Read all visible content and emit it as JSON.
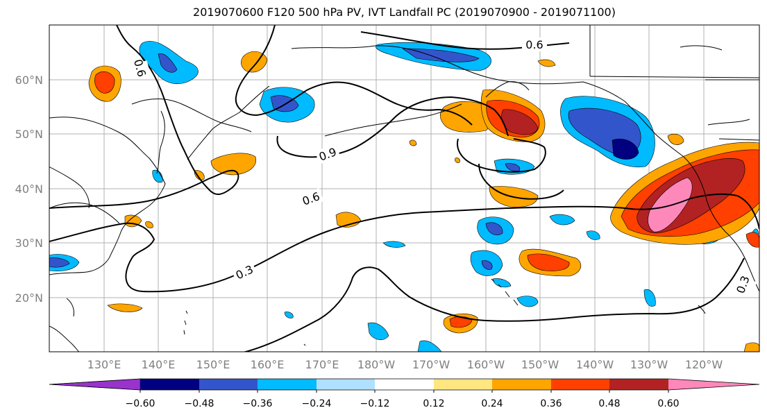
{
  "title": "2019070600 F120 500 hPa PV, IVT Landfall PC (2019070900 - 2019071100)",
  "lat_labels": [
    "60°N",
    "50°N",
    "40°N",
    "30°N",
    "20°N"
  ],
  "lon_labels": [
    "130°E",
    "140°E",
    "150°E",
    "160°E",
    "170°E",
    "180°W",
    "170°W",
    "160°W",
    "150°W",
    "140°W",
    "130°W",
    "120°W"
  ],
  "contour_labels": [
    "0.6",
    "0.9",
    "0.6",
    "0.3",
    "0.3",
    "0.6"
  ],
  "colorbar": {
    "colors": [
      "#9933cc",
      "#000080",
      "#3355cc",
      "#00bbff",
      "#b0e0ff",
      "#ffffff",
      "#ffe680",
      "#ffa500",
      "#ff4000",
      "#b22222",
      "#ff88bb"
    ],
    "tick_labels": [
      "−0.60",
      "−0.48",
      "−0.36",
      "−0.24",
      "−0.12",
      "0.12",
      "0.24",
      "0.36",
      "0.48",
      "0.60"
    ]
  }
}
